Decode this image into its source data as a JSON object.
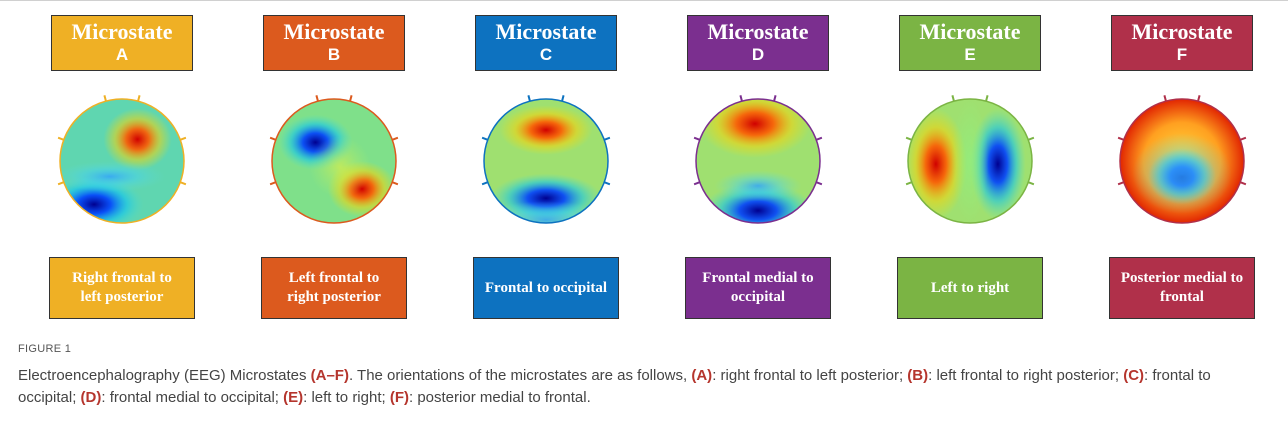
{
  "panels": [
    {
      "header": "Microstate",
      "letter": "A",
      "description": "Right frontal to left posterior",
      "color": "#efb025"
    },
    {
      "header": "Microstate",
      "letter": "B",
      "description": "Left frontal to right posterior",
      "color": "#dc5a1e"
    },
    {
      "header": "Microstate",
      "letter": "C",
      "description": "Frontal to occipital",
      "color": "#0d72c0"
    },
    {
      "header": "Microstate",
      "letter": "D",
      "description": "Frontal medial to occipital",
      "color": "#7b2f8f"
    },
    {
      "header": "Microstate",
      "letter": "E",
      "description": "Left to right",
      "color": "#7bb444"
    },
    {
      "header": "Microstate",
      "letter": "F",
      "description": "Posterior medial to frontal",
      "color": "#b0304a"
    }
  ],
  "caption": {
    "label": "FIGURE 1",
    "parts": [
      "Electroencephalography (EEG) Microstates ",
      "(A–F)",
      ". The orientations of the microstates are as follows, ",
      "(A)",
      ": right frontal to left posterior; ",
      "(B)",
      ": left frontal to right posterior; ",
      "(C)",
      ": frontal to occipital; ",
      "(D)",
      ": frontal medial to occipital; ",
      "(E)",
      ": left to right; ",
      "(F)",
      ": posterior medial to frontal."
    ]
  }
}
